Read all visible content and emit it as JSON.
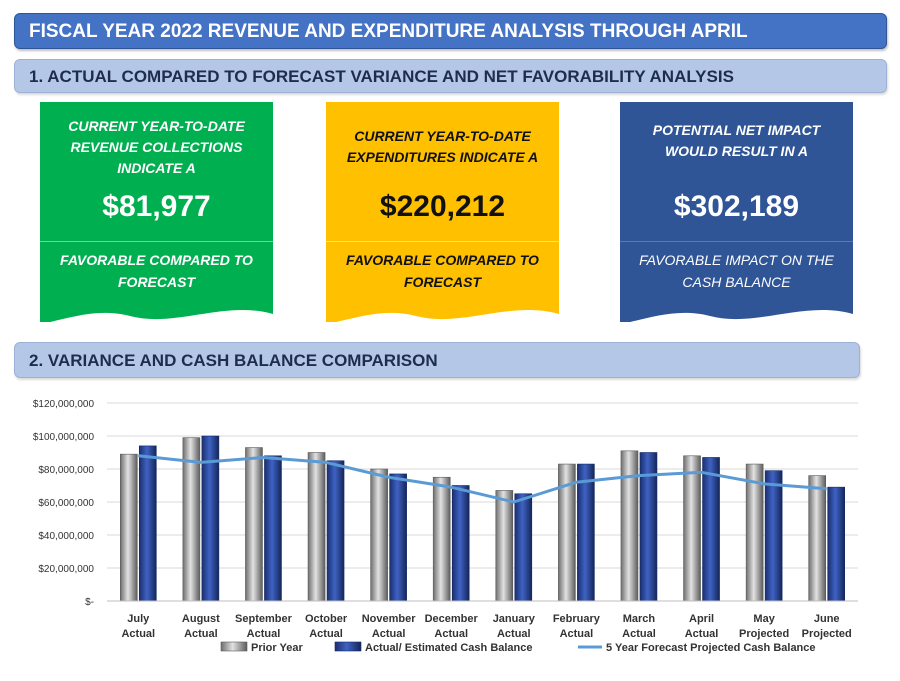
{
  "header": {
    "title": "FISCAL YEAR 2022 REVENUE AND EXPENDITURE ANALYSIS THROUGH APRIL",
    "section1_title": "1. ACTUAL COMPARED TO FORECAST VARIANCE AND NET FAVORABILITY ANALYSIS",
    "section2_title": "2. VARIANCE AND CASH BALANCE COMPARISON"
  },
  "cards": {
    "revenue": {
      "lead": "CURRENT YEAR-TO-DATE REVENUE COLLECTIONS INDICATE A",
      "amount": "$81,977",
      "tail": "FAVORABLE COMPARED TO FORECAST",
      "color": "#00b050"
    },
    "expenditures": {
      "lead": "CURRENT YEAR-TO-DATE EXPENDITURES INDICATE A",
      "amount": "$220,212",
      "tail": "FAVORABLE COMPARED TO FORECAST",
      "color": "#ffc000"
    },
    "net": {
      "lead": "POTENTIAL NET IMPACT WOULD RESULT IN A",
      "amount": "$302,189",
      "tail": "FAVORABLE IMPACT ON THE CASH BALANCE",
      "color": "#2f5597"
    }
  },
  "chart_data": {
    "type": "bar",
    "categories": [
      [
        "July",
        "Actual"
      ],
      [
        "August",
        "Actual"
      ],
      [
        "September",
        "Actual"
      ],
      [
        "October",
        "Actual"
      ],
      [
        "November",
        "Actual"
      ],
      [
        "December",
        "Actual"
      ],
      [
        "January",
        "Actual"
      ],
      [
        "February",
        "Actual"
      ],
      [
        "March",
        "Actual"
      ],
      [
        "April",
        "Actual"
      ],
      [
        "May",
        "Projected"
      ],
      [
        "June",
        "Projected"
      ]
    ],
    "ylim": [
      0,
      120000000
    ],
    "yticks": [
      0,
      20000000,
      40000000,
      60000000,
      80000000,
      100000000,
      120000000
    ],
    "ytick_labels": [
      "$-",
      "$20,000,000",
      "$40,000,000",
      "$60,000,000",
      "$80,000,000",
      "$100,000,000",
      "$120,000,000"
    ],
    "series": [
      {
        "name": "Prior Year",
        "type": "bar",
        "color": "#a6a6a6",
        "values": [
          89000000,
          99000000,
          93000000,
          90000000,
          80000000,
          75000000,
          67000000,
          83000000,
          91000000,
          88000000,
          83000000,
          76000000
        ]
      },
      {
        "name": "Actual/ Estimated Cash Balance",
        "type": "bar",
        "color": "#2f4fa8",
        "values": [
          94000000,
          100000000,
          88000000,
          85000000,
          77000000,
          70000000,
          65000000,
          83000000,
          90000000,
          87000000,
          79000000,
          69000000
        ]
      },
      {
        "name": "5 Year Forecast Projected Cash Balance",
        "type": "line",
        "color": "#5b9bd5",
        "values": [
          88000000,
          84000000,
          87000000,
          84000000,
          75000000,
          69000000,
          60000000,
          72000000,
          76000000,
          78000000,
          71000000,
          68000000
        ]
      }
    ],
    "legend": "bottom",
    "grid": true
  }
}
